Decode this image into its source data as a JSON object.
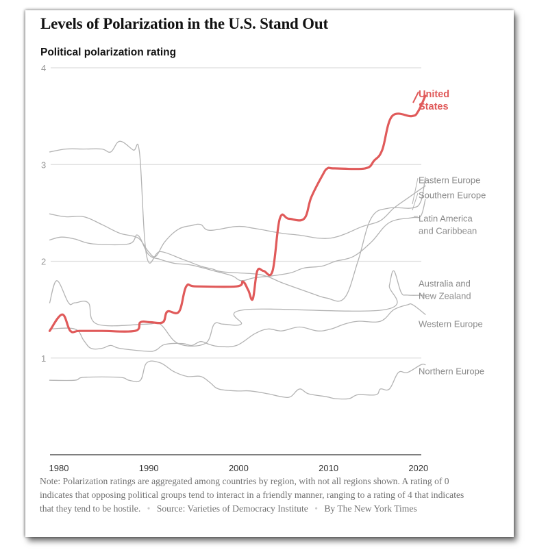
{
  "header": {
    "title": "Levels of Polarization in the U.S. Stand Out",
    "subtitle": "Political polarization rating"
  },
  "footer": {
    "note": "Note: Polarization ratings are aggregated among countries by region, with not all regions shown. A rating of 0 indicates that opposing political groups tend to interact in a friendly manner, ranging to a rating of 4 that indicates that they tend to be hostile.",
    "separator": "•",
    "source": "Source: Varieties of Democracy Institute",
    "credit": "By The New York Times"
  },
  "colors": {
    "highlight": "#e05a5a",
    "series": "#b3b3b3",
    "grid": "#dddddd",
    "axis": "#333333",
    "tick_text": "#999999",
    "label_text": "#8a8a8a"
  },
  "chart_data": {
    "type": "line",
    "title": "Levels of Polarization in the U.S. Stand Out",
    "ylabel": "Political polarization rating",
    "xlabel": "",
    "xlim": [
      1979.2,
      2021
    ],
    "ylim": [
      0,
      4
    ],
    "yticks": [
      1,
      2,
      3,
      4
    ],
    "xticks": [
      1980,
      1990,
      2000,
      2010,
      2020
    ],
    "grid": true,
    "legend": "direct labels at right end of lines",
    "series": [
      {
        "name": "United States",
        "label_lines": [
          "United",
          "States"
        ],
        "highlight": true,
        "x": [
          1979.2,
          1980.6,
          1981.5,
          1982.5,
          1985,
          1988.7,
          1989.3,
          1990.4,
          1991.8,
          1992.3,
          1993.6,
          1994.4,
          1995.5,
          2000,
          2000.7,
          2001.3,
          2001.8,
          2002.3,
          2003,
          2004,
          2004.8,
          2005.8,
          2007.5,
          2008.3,
          2009.5,
          2010.1,
          2010.9,
          2014.3,
          2015.3,
          2016.2,
          2017.3,
          2019.5,
          2020.2,
          2021
        ],
        "y": [
          1.28,
          1.45,
          1.28,
          1.28,
          1.28,
          1.28,
          1.37,
          1.37,
          1.37,
          1.48,
          1.48,
          1.74,
          1.74,
          1.74,
          1.79,
          1.7,
          1.61,
          1.9,
          1.9,
          1.9,
          2.44,
          2.44,
          2.44,
          2.66,
          2.88,
          2.96,
          2.96,
          2.96,
          3.04,
          3.15,
          3.5,
          3.5,
          3.55,
          3.71
        ]
      },
      {
        "name": "Eastern Europe",
        "label_lines": [
          "Eastern Europe"
        ],
        "highlight": false,
        "x": [
          1979.2,
          1981,
          1983,
          1985,
          1986,
          1987,
          1988.5,
          1989.2,
          1990,
          1991.5,
          1994,
          1996,
          1997.3,
          1998.5,
          2002,
          2003.5,
          2005,
          2008,
          2010,
          2012,
          2013.5,
          2015,
          2017,
          2019.5,
          2020.5,
          2021
        ],
        "y": [
          3.13,
          3.16,
          3.16,
          3.16,
          3.13,
          3.24,
          3.15,
          3.12,
          2.05,
          2.1,
          2.02,
          1.95,
          1.92,
          1.89,
          1.87,
          1.84,
          1.78,
          1.68,
          1.62,
          1.62,
          2.0,
          2.45,
          2.55,
          2.55,
          2.62,
          2.87
        ]
      },
      {
        "name": "Southern Europe",
        "label_lines": [
          "Southern Europe"
        ],
        "highlight": false,
        "x": [
          1979.2,
          1980.5,
          1982,
          1984,
          1988,
          1989,
          1990.2,
          1991.5,
          1993,
          1995,
          1997.5,
          1999.5,
          2000.5,
          2002,
          2004,
          2006,
          2007.5,
          2009.5,
          2011,
          2013,
          2015,
          2017,
          2019.5,
          2020.5,
          2021
        ],
        "y": [
          2.22,
          2.25,
          2.23,
          2.18,
          2.18,
          2.27,
          2.07,
          2.02,
          1.98,
          1.96,
          1.9,
          1.85,
          1.8,
          1.83,
          1.85,
          1.88,
          1.93,
          1.95,
          2.0,
          2.05,
          2.2,
          2.4,
          2.45,
          2.47,
          2.64
        ]
      },
      {
        "name": "Latin America and Caribbean",
        "label_lines": [
          "Latin America",
          "and Caribbean"
        ],
        "highlight": false,
        "x": [
          1979.2,
          1981,
          1983,
          1985,
          1987,
          1988.5,
          1989.3,
          1990.2,
          1991,
          1992,
          1993.5,
          1995,
          1996,
          1997,
          2000,
          2002,
          2005,
          2007,
          2009,
          2010.5,
          2012,
          2014,
          2016,
          2017.5,
          2019,
          2021
        ],
        "y": [
          2.49,
          2.46,
          2.46,
          2.38,
          2.29,
          2.26,
          2.22,
          2.1,
          2.05,
          2.2,
          2.33,
          2.37,
          2.38,
          2.32,
          2.36,
          2.34,
          2.29,
          2.27,
          2.24,
          2.24,
          2.28,
          2.36,
          2.42,
          2.55,
          2.65,
          2.78
        ]
      },
      {
        "name": "Australia and New Zealand",
        "label_lines": [
          "Australia and",
          "New Zealand"
        ],
        "highlight": false,
        "x": [
          1979.2,
          1980,
          1981.3,
          1982,
          1983.5,
          1984.5,
          1990,
          1991.5,
          1993.5,
          1996.5,
          1997.5,
          1998.5,
          2000.5,
          2001,
          2016.5,
          2017,
          2017.5,
          2018.3,
          2019,
          2021
        ],
        "y": [
          1.57,
          1.8,
          1.57,
          1.57,
          1.57,
          1.35,
          1.35,
          1.35,
          1.15,
          1.15,
          1.35,
          1.35,
          1.35,
          1.5,
          1.5,
          1.75,
          1.9,
          1.68,
          1.65,
          1.65
        ]
      },
      {
        "name": "Western Europe",
        "label_lines": [
          "Western Europe"
        ],
        "highlight": false,
        "x": [
          1979.2,
          1982,
          1983,
          1983.8,
          1985,
          1986,
          1987,
          1990,
          1991,
          1992,
          1994,
          1995,
          1996,
          1997,
          1998,
          2000,
          2002,
          2003.5,
          2005,
          2007,
          2009,
          2010.5,
          2012,
          2013.5,
          2016,
          2017.5,
          2019,
          2019.6,
          2021
        ],
        "y": [
          1.3,
          1.3,
          1.18,
          1.1,
          1.1,
          1.13,
          1.1,
          1.07,
          1.08,
          1.14,
          1.15,
          1.13,
          1.17,
          1.14,
          1.12,
          1.13,
          1.25,
          1.3,
          1.28,
          1.32,
          1.28,
          1.3,
          1.35,
          1.38,
          1.38,
          1.5,
          1.55,
          1.55,
          1.45
        ]
      },
      {
        "name": "Northern Europe",
        "label_lines": [
          "Northern Europe"
        ],
        "highlight": false,
        "x": [
          1979.2,
          1982,
          1983,
          1987,
          1988,
          1989.3,
          1990,
          1991.5,
          1993,
          1994.5,
          1996,
          1997,
          1998,
          2000,
          2001.5,
          2003.5,
          2005,
          2006,
          2007,
          2008,
          2010,
          2011,
          2012.5,
          2013.5,
          2015.5,
          2016,
          2017,
          2018,
          2019,
          2020.5,
          2021
        ],
        "y": [
          0.77,
          0.77,
          0.8,
          0.8,
          0.77,
          0.77,
          0.95,
          0.95,
          0.86,
          0.81,
          0.81,
          0.75,
          0.68,
          0.66,
          0.66,
          0.63,
          0.6,
          0.6,
          0.68,
          0.63,
          0.6,
          0.58,
          0.58,
          0.62,
          0.62,
          0.68,
          0.68,
          0.85,
          0.85,
          0.93,
          0.93
        ]
      }
    ]
  }
}
